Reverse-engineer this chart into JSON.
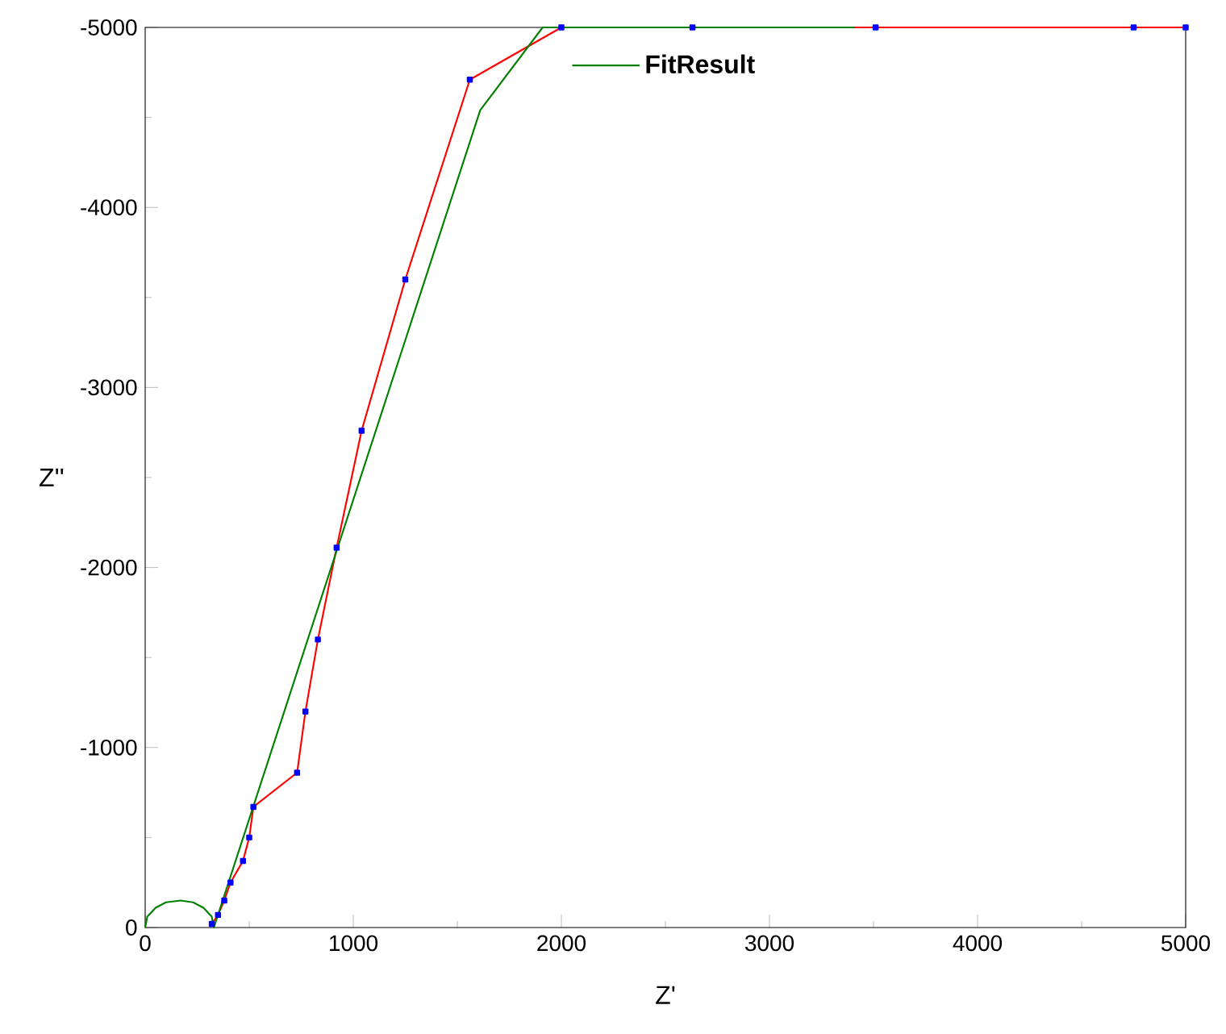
{
  "chart_data": {
    "type": "line",
    "xlabel": "Z'",
    "ylabel": "Z''",
    "xlim": [
      0,
      5000
    ],
    "ylim": [
      0,
      -5000
    ],
    "xticks": [
      0,
      1000,
      2000,
      3000,
      4000,
      5000
    ],
    "yticks": [
      0,
      -1000,
      -2000,
      -3000,
      -4000,
      -5000
    ],
    "grid": false,
    "legend": "top",
    "series": [
      {
        "color": "#ff0000",
        "marker": "square",
        "x": [
          320,
          350,
          380,
          410,
          470,
          500,
          520,
          730,
          770,
          830,
          920,
          1040,
          1250,
          1560,
          2000,
          2630,
          3510,
          4750,
          5000
        ],
        "values": [
          -20,
          -70,
          -150,
          -250,
          -370,
          -500,
          -670,
          -860,
          -1200,
          -1600,
          -2110,
          -2760,
          -3600,
          -4710,
          -5000,
          -5000,
          -5000,
          -5000,
          -5000
        ]
      },
      {
        "name": "FitResult",
        "color": "#008000",
        "marker": "none",
        "x": [
          0,
          10,
          50,
          100,
          170,
          230,
          280,
          320,
          330,
          1610,
          1910,
          3410
        ],
        "values": [
          0,
          -60,
          -110,
          -140,
          -150,
          -140,
          -110,
          -60,
          0,
          -4540,
          -5000,
          -5000
        ]
      }
    ]
  }
}
